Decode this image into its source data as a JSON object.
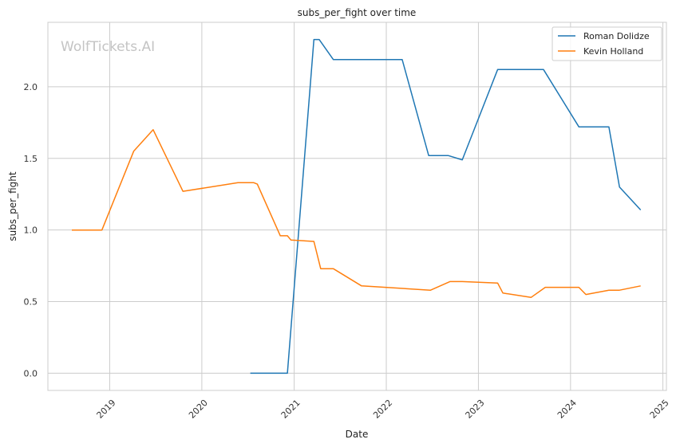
{
  "chart_data": {
    "type": "line",
    "title": "subs_per_fight over time",
    "xlabel": "Date",
    "ylabel": "subs_per_fight",
    "watermark": "WolfTickets.AI",
    "x_ticks": [
      "2019",
      "2020",
      "2021",
      "2022",
      "2023",
      "2024",
      "2025"
    ],
    "y_ticks": [
      "0.0",
      "0.5",
      "1.0",
      "1.5",
      "2.0"
    ],
    "xlim": [
      "2018-05-01",
      "2025-01-15"
    ],
    "ylim": [
      -0.12,
      2.45
    ],
    "grid": true,
    "legend_position": "top-right",
    "series": [
      {
        "name": "Roman Dolidze",
        "color": "#1f77b4",
        "points": [
          [
            "2020-07-11",
            0.0
          ],
          [
            "2020-12-05",
            0.0
          ],
          [
            "2021-03-20",
            2.33
          ],
          [
            "2021-04-10",
            2.33
          ],
          [
            "2021-06-05",
            2.19
          ],
          [
            "2022-03-05",
            2.19
          ],
          [
            "2022-06-18",
            1.52
          ],
          [
            "2022-09-03",
            1.52
          ],
          [
            "2022-10-29",
            1.49
          ],
          [
            "2023-03-18",
            2.12
          ],
          [
            "2023-09-16",
            2.12
          ],
          [
            "2024-02-03",
            1.72
          ],
          [
            "2024-06-01",
            1.72
          ],
          [
            "2024-07-13",
            1.3
          ],
          [
            "2024-10-05",
            1.14
          ]
        ]
      },
      {
        "name": "Kevin Holland",
        "color": "#ff7f0e",
        "points": [
          [
            "2018-08-04",
            1.0
          ],
          [
            "2018-12-01",
            1.0
          ],
          [
            "2019-04-06",
            1.55
          ],
          [
            "2019-06-22",
            1.7
          ],
          [
            "2019-10-18",
            1.27
          ],
          [
            "2020-05-23",
            1.33
          ],
          [
            "2020-07-25",
            1.33
          ],
          [
            "2020-08-08",
            1.32
          ],
          [
            "2020-11-07",
            0.96
          ],
          [
            "2020-12-05",
            0.96
          ],
          [
            "2020-12-19",
            0.93
          ],
          [
            "2021-03-20",
            0.92
          ],
          [
            "2021-04-16",
            0.73
          ],
          [
            "2021-06-05",
            0.73
          ],
          [
            "2021-09-25",
            0.61
          ],
          [
            "2022-06-25",
            0.58
          ],
          [
            "2022-09-10",
            0.64
          ],
          [
            "2022-10-29",
            0.64
          ],
          [
            "2023-03-18",
            0.63
          ],
          [
            "2023-04-08",
            0.56
          ],
          [
            "2023-07-29",
            0.53
          ],
          [
            "2023-09-23",
            0.6
          ],
          [
            "2024-02-03",
            0.6
          ],
          [
            "2024-03-02",
            0.55
          ],
          [
            "2024-06-01",
            0.58
          ],
          [
            "2024-07-13",
            0.58
          ],
          [
            "2024-10-05",
            0.61
          ]
        ]
      }
    ]
  }
}
